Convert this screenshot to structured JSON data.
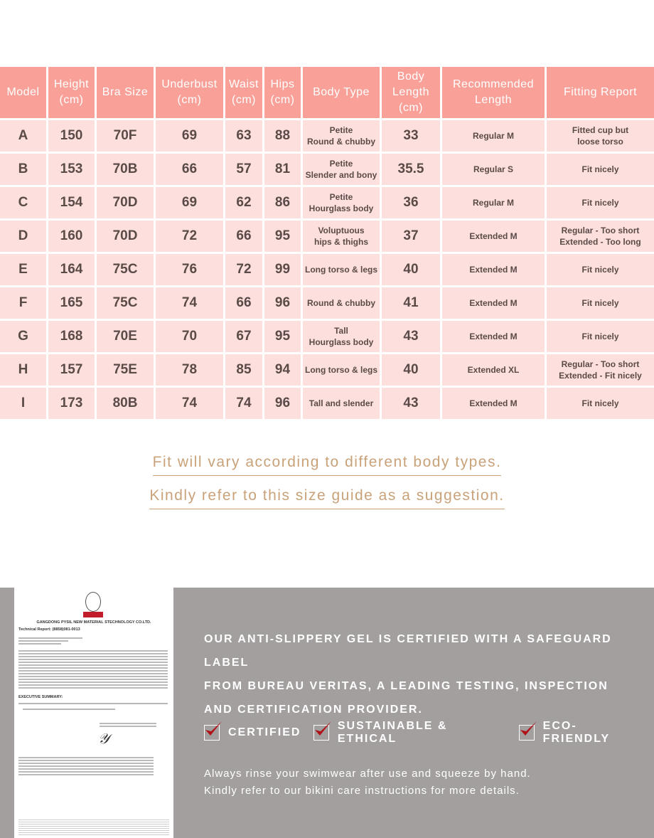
{
  "table": {
    "headers": [
      [
        "Model"
      ],
      [
        "Height",
        "(cm)"
      ],
      [
        "Bra Size"
      ],
      [
        "Underbust",
        "(cm)"
      ],
      [
        "Waist",
        "(cm)"
      ],
      [
        "Hips",
        "(cm)"
      ],
      [
        "Body Type"
      ],
      [
        "Body",
        "Length",
        "(cm)"
      ],
      [
        "Recommended",
        "Length"
      ],
      [
        "Fitting Report"
      ]
    ],
    "rows": [
      {
        "model": "A",
        "height": "150",
        "bra": "70F",
        "underbust": "69",
        "waist": "63",
        "hips": "88",
        "body_type": [
          "Petite",
          "Round & chubby"
        ],
        "length": "33",
        "recommended": "Regular M",
        "report": [
          "Fitted cup but",
          "loose torso"
        ]
      },
      {
        "model": "B",
        "height": "153",
        "bra": "70B",
        "underbust": "66",
        "waist": "57",
        "hips": "81",
        "body_type": [
          "Petite",
          "Slender and bony"
        ],
        "length": "35.5",
        "recommended": "Regular S",
        "report": [
          "Fit nicely"
        ]
      },
      {
        "model": "C",
        "height": "154",
        "bra": "70D",
        "underbust": "69",
        "waist": "62",
        "hips": "86",
        "body_type": [
          "Petite",
          "Hourglass body"
        ],
        "length": "36",
        "recommended": "Regular M",
        "report": [
          "Fit nicely"
        ]
      },
      {
        "model": "D",
        "height": "160",
        "bra": "70D",
        "underbust": "72",
        "waist": "66",
        "hips": "95",
        "body_type": [
          "Voluptuous",
          "hips & thighs"
        ],
        "length": "37",
        "recommended": "Extended M",
        "report": [
          "Regular - Too short",
          "Extended - Too long"
        ]
      },
      {
        "model": "E",
        "height": "164",
        "bra": "75C",
        "underbust": "76",
        "waist": "72",
        "hips": "99",
        "body_type": [
          "Long torso & legs"
        ],
        "length": "40",
        "recommended": "Extended M",
        "report": [
          "Fit nicely"
        ]
      },
      {
        "model": "F",
        "height": "165",
        "bra": "75C",
        "underbust": "74",
        "waist": "66",
        "hips": "96",
        "body_type": [
          "Round & chubby"
        ],
        "length": "41",
        "recommended": "Extended M",
        "report": [
          "Fit nicely"
        ]
      },
      {
        "model": "G",
        "height": "168",
        "bra": "70E",
        "underbust": "70",
        "waist": "67",
        "hips": "95",
        "body_type": [
          "Tall",
          "Hourglass body"
        ],
        "length": "43",
        "recommended": "Extended M",
        "report": [
          "Fit nicely"
        ]
      },
      {
        "model": "H",
        "height": "157",
        "bra": "75E",
        "underbust": "78",
        "waist": "85",
        "hips": "94",
        "body_type": [
          "Long torso & legs"
        ],
        "length": "40",
        "recommended": "Extended XL",
        "report": [
          "Regular - Too short",
          "Extended - Fit nicely"
        ]
      },
      {
        "model": "I",
        "height": "173",
        "bra": "80B",
        "underbust": "74",
        "waist": "74",
        "hips": "96",
        "body_type": [
          "Tall and slender"
        ],
        "length": "43",
        "recommended": "Extended M",
        "report": [
          "Fit nicely"
        ]
      }
    ]
  },
  "notes": [
    "Fit will vary according to different body types.",
    "Kindly refer to this size guide as a suggestion."
  ],
  "certificate": {
    "company": "GANGDONG PYSIL NEW MATERIAL STECHNOLOGY CO.LTD.",
    "report": "Technical Report:     (8858)081-0013",
    "summary": "EXECUTIVE SUMMARY:"
  },
  "claim": [
    "OUR ANTI-SLIPPERY GEL IS CERTIFIED WITH A SAFEGUARD LABEL",
    "FROM BUREAU VERITAS, A LEADING TESTING, INSPECTION",
    "AND CERTIFICATION PROVIDER."
  ],
  "badges": [
    "CERTIFIED",
    "SUSTAINABLE & ETHICAL",
    "ECO-FRIENDLY"
  ],
  "care": [
    "Always rinse your swimwear after use and squeeze by hand.",
    "Kindly refer to our bikini care instructions for more details."
  ],
  "colors": {
    "header": "#f9a198",
    "row": "#fde0dd",
    "note": "#c9a27a",
    "band": "#a39f9f",
    "check": "#b01218"
  }
}
